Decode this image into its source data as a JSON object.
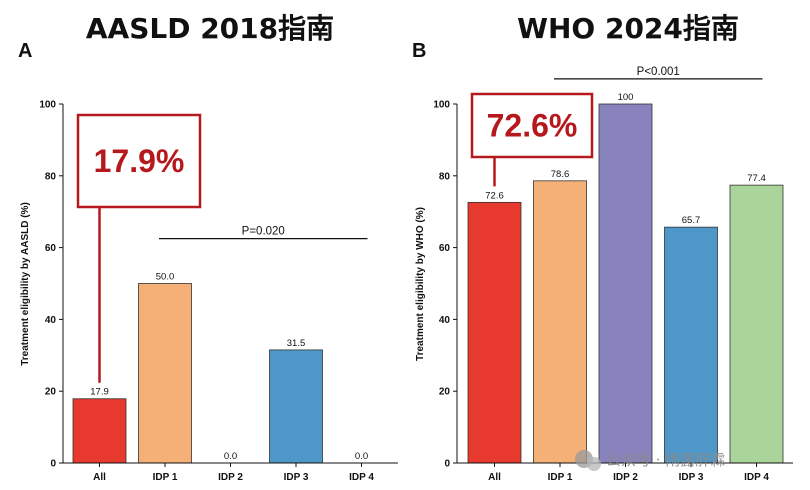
{
  "colors": {
    "All": "#e8392e",
    "IDP 1": "#f5b078",
    "IDP 2": "#8882bd",
    "IDP 3": "#4f97c9",
    "IDP 4": "#a9d49a",
    "callout": "#b5191d"
  },
  "watermark": {
    "text": "公众号 · 雨露肝霖",
    "icon": "wechat-icon"
  },
  "chart_data": [
    {
      "type": "bar",
      "panel": "A",
      "title": "AASLD 2018指南",
      "ylabel": "Treatment eligibility by AASLD (%)",
      "xlabel": "",
      "ylim": [
        0,
        100
      ],
      "yticks": [
        0,
        20,
        40,
        60,
        80,
        100
      ],
      "categories": [
        "All",
        "IDP 1",
        "IDP 2",
        "IDP 3",
        "IDP 4"
      ],
      "values": [
        17.9,
        50.0,
        0.0,
        31.5,
        0.0
      ],
      "value_labels": [
        "17.9",
        "50.0",
        "0.0",
        "31.5",
        "0.0"
      ],
      "pvalue": {
        "text": "P=0.020",
        "from": "IDP 1",
        "to": "IDP 4",
        "y": 62.5
      },
      "callout": {
        "text": "17.9%",
        "target": "All"
      },
      "grid": false
    },
    {
      "type": "bar",
      "panel": "B",
      "title": "WHO 2024指南",
      "ylabel": "Treatment eligibility by WHO (%)",
      "xlabel": "",
      "ylim": [
        0,
        100
      ],
      "yticks": [
        0,
        20,
        40,
        60,
        80,
        100
      ],
      "categories": [
        "All",
        "IDP 1",
        "IDP 2",
        "IDP 3",
        "IDP 4"
      ],
      "values": [
        72.6,
        78.6,
        100,
        65.7,
        77.4
      ],
      "value_labels": [
        "72.6",
        "78.6",
        "100",
        "65.7",
        "77.4"
      ],
      "pvalue": {
        "text": "P<0.001",
        "from": "IDP 1",
        "to": "IDP 4",
        "y": 107
      },
      "callout": {
        "text": "72.6%",
        "target": "All"
      },
      "grid": false
    }
  ]
}
